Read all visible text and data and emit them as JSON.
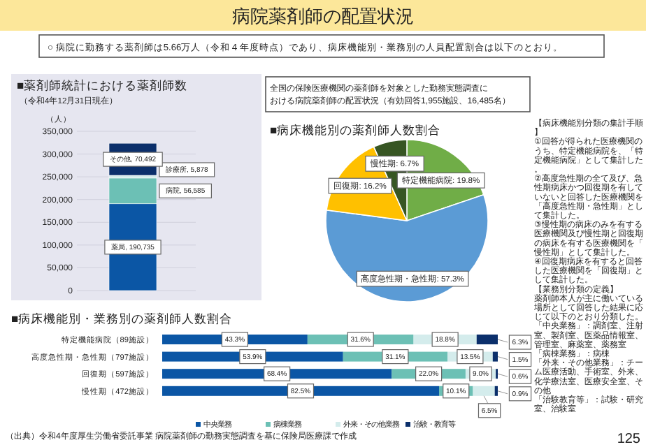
{
  "chart_data": [
    {
      "type": "other",
      "title": "病院薬剤師の配置状況",
      "annotations": [
        "○ 病院に勤務する薬剤師は5.66万人（令和４年度時点）であり、病床機能別・業務別の人員配置割合は以下のとおり。",
        "全国の保険医療機関の薬剤師を対象とした勤務実態調査における病院薬剤師の配置状況（有効回答1,955施設、16,485名）",
        "【病床機能別分類の集計手順】",
        "①回答が得られた医療機関のうち、特定機能病院を、「特定機能病院」として集計した。",
        "②高度急性期の全て及び、急性期病床かつ回復期を有していないと回答した医療機関を「高度急性期・急性期」として集計した。",
        "③慢性期の病床のみを有する医療機関及び慢性期と回復期の病床を有する医療機関を「慢性期」として集計した。",
        "④回復期病床を有すると回答した医療機関を「回復期」として集計した。",
        "【業務別分類の定義】",
        "薬剤師本人が主に働いている場所として回答した結果に応じて以下のとおり分類した。",
        "「中央業務」：調剤室、注射室、製剤室、医薬品情報室、管理室、麻薬室、薬務室",
        "「病棟業務」：病棟",
        "「外来・その他業務」：チーム医療活動、手術室、外来、化学療法室、医療安全室、その他",
        "「治験教育等」：試験・研究室、治験室",
        "（出典）令和4年度厚生労働省委託事業 病院薬剤師の勤務実態調査を基に保険局医療課で作成",
        "125"
      ]
    },
    {
      "type": "bar",
      "stacked": true,
      "title": "■薬剤師統計における薬剤師数",
      "subtitle": "（令和4年12月31日現在）",
      "ylabel": "（人）",
      "categories": [
        null
      ],
      "series": [
        {
          "name": "薬局,",
          "color": "#0b56a5",
          "values": [
            190735
          ],
          "value_labels": [
            "190,735"
          ]
        },
        {
          "name": "病院,",
          "color": "#6cc0b5",
          "values": [
            56585
          ],
          "value_labels": [
            "56,585"
          ]
        },
        {
          "name": "診療所,",
          "color": "#d4ecec",
          "values": [
            5878
          ],
          "value_labels": [
            "5,878"
          ]
        },
        {
          "name": "その他,",
          "color": "#0b2f6b",
          "values": [
            70492
          ],
          "value_labels": [
            "70,492"
          ]
        }
      ],
      "ylim": [
        0,
        350000
      ],
      "yticks": [
        0,
        {
          "value": 50000,
          "label": "50,000"
        },
        {
          "value": 100000,
          "label": "100,000"
        },
        {
          "value": 150000,
          "label": "150,000"
        },
        {
          "value": 200000,
          "label": "200,000"
        },
        {
          "value": 250000,
          "label": "250,000"
        },
        {
          "value": 300000,
          "label": "300,000"
        },
        {
          "value": 350000,
          "label": "350,000"
        }
      ],
      "grid": "y"
    },
    {
      "type": "pie",
      "title": "■病床機能別の薬剤師人数割合",
      "categories": [
        "特定機能病院",
        "高度急性期・急性期",
        "回復期",
        "慢性期"
      ],
      "values": [
        19.8,
        57.3,
        16.2,
        6.7
      ],
      "colors": [
        "#70ad47",
        "#5b9bd5",
        "#ffc000",
        "#375623"
      ],
      "value_labels": [
        "19.8%",
        "57.3%",
        "16.2%",
        "6.7%"
      ]
    },
    {
      "type": "bar",
      "orientation": "horizontal",
      "stacked": true,
      "title": "■病床機能別・業務別の薬剤師人数割合",
      "categories": [
        "特定機能病院（89施設）",
        "高度急性期・急性期（797施設）",
        "回復期（597施設）",
        "慢性期（472施設）"
      ],
      "xlim": [
        0,
        100
      ],
      "legend": "bottom",
      "series": [
        {
          "name": "中央業務",
          "color": "#0b56a5",
          "values": [
            43.3,
            53.9,
            68.4,
            82.5
          ],
          "value_labels": [
            "43.3%",
            "53.9%",
            "68.4%",
            "82.5%"
          ]
        },
        {
          "name": "病棟業務",
          "color": "#6cc0b5",
          "values": [
            31.6,
            31.1,
            22.0,
            10.1
          ],
          "value_labels": [
            "31.6%",
            "31.1%",
            "22.0%",
            "10.1%"
          ]
        },
        {
          "name": "外来・その他業務",
          "color": "#d4ecec",
          "values": [
            18.8,
            13.5,
            9.0,
            6.5
          ],
          "value_labels": [
            "18.8%",
            "13.5%",
            "9.0%",
            "6.5%"
          ]
        },
        {
          "name": "治験・教育等",
          "color": "#0b2f6b",
          "values": [
            6.3,
            1.5,
            0.6,
            0.9
          ],
          "value_labels": [
            "6.3%",
            "1.5%",
            "0.6%",
            "0.9%"
          ]
        }
      ]
    }
  ]
}
